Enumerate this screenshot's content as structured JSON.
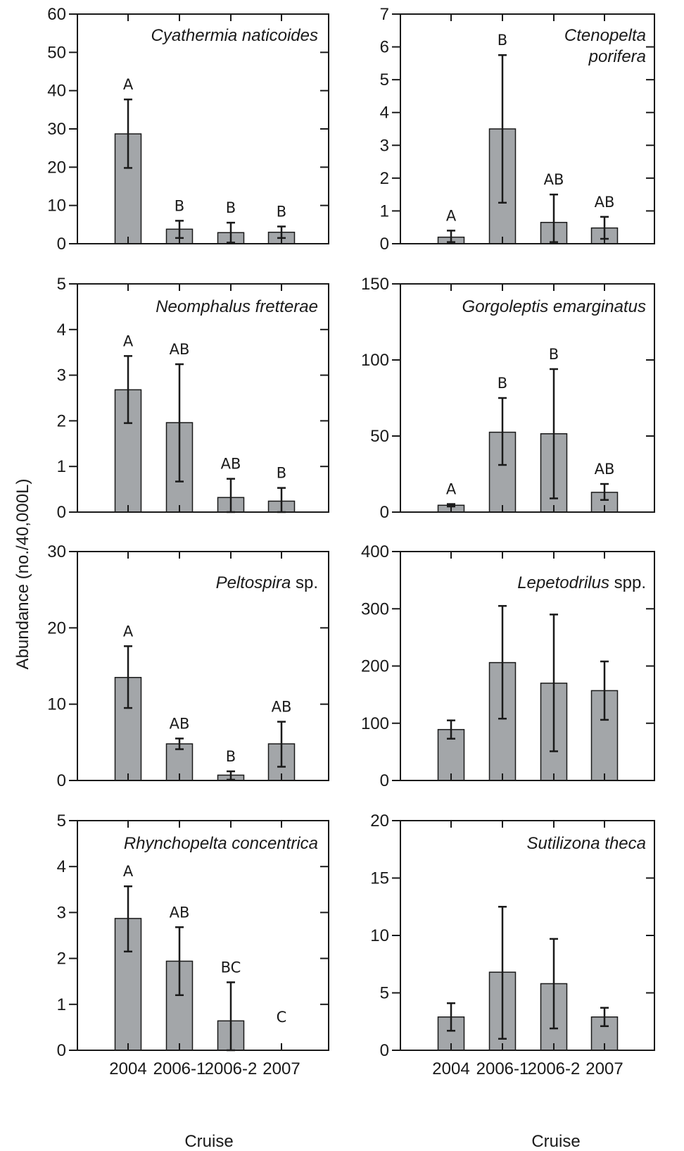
{
  "figure": {
    "ylabel": "Abundance (no./40,000L)",
    "xlabel": "Cruise"
  },
  "chart_data": [
    {
      "type": "bar",
      "title": "Cyathermia naticoides",
      "title_parts": [
        {
          "text": "Cyathermia naticoides",
          "italic": true
        }
      ],
      "categories": [
        "2004",
        "2006-1",
        "2006-2",
        "2007"
      ],
      "values": [
        28.7,
        3.8,
        2.9,
        3.0
      ],
      "error_low": [
        19.8,
        1.5,
        0.3,
        1.5
      ],
      "error_high": [
        37.7,
        6.0,
        5.5,
        4.5
      ],
      "letters": [
        "A",
        "B",
        "B",
        "B"
      ],
      "ylim": [
        0,
        60
      ],
      "yticks": [
        0,
        10,
        20,
        30,
        40,
        50,
        60
      ],
      "show_xticklabels": false
    },
    {
      "type": "bar",
      "title": "Ctenopelta porifera",
      "title_parts": [
        {
          "text": "Ctenopelta",
          "italic": true
        },
        {
          "text": "porifera",
          "italic": true
        }
      ],
      "categories": [
        "2004",
        "2006-1",
        "2006-2",
        "2007"
      ],
      "values": [
        0.2,
        3.5,
        0.65,
        0.48
      ],
      "error_low": [
        0.05,
        1.25,
        0.05,
        0.15
      ],
      "error_high": [
        0.4,
        5.75,
        1.5,
        0.82
      ],
      "letters": [
        "A",
        "B",
        "AB",
        "AB"
      ],
      "ylim": [
        0,
        7
      ],
      "yticks": [
        0,
        1,
        2,
        3,
        4,
        5,
        6,
        7
      ],
      "show_xticklabels": false
    },
    {
      "type": "bar",
      "title": "Neomphalus fretterae",
      "title_parts": [
        {
          "text": "Neomphalus fretterae",
          "italic": true
        }
      ],
      "categories": [
        "2004",
        "2006-1",
        "2006-2",
        "2007"
      ],
      "values": [
        2.68,
        1.96,
        0.32,
        0.24
      ],
      "error_low": [
        1.95,
        0.67,
        0.0,
        0.0
      ],
      "error_high": [
        3.42,
        3.24,
        0.73,
        0.53
      ],
      "letters": [
        "A",
        "AB",
        "AB",
        "B"
      ],
      "ylim": [
        0,
        5
      ],
      "yticks": [
        0,
        1,
        2,
        3,
        4,
        5
      ],
      "show_xticklabels": false
    },
    {
      "type": "bar",
      "title": "Gorgoleptis emarginatus",
      "title_parts": [
        {
          "text": "Gorgoleptis emarginatus",
          "italic": true
        }
      ],
      "categories": [
        "2004",
        "2006-1",
        "2006-2",
        "2007"
      ],
      "values": [
        4.5,
        52.5,
        51.5,
        13.0
      ],
      "error_low": [
        3.7,
        31.0,
        9.0,
        8.0
      ],
      "error_high": [
        5.3,
        75.0,
        94.0,
        18.5
      ],
      "letters": [
        "A",
        "B",
        "B",
        "AB"
      ],
      "ylim": [
        0,
        150
      ],
      "yticks": [
        0,
        50,
        100,
        150
      ],
      "show_xticklabels": false
    },
    {
      "type": "bar",
      "title": "Peltospira sp.",
      "title_parts": [
        {
          "text": "Peltospira",
          "italic": true
        },
        {
          "text": " sp.",
          "italic": false
        }
      ],
      "categories": [
        "2004",
        "2006-1",
        "2006-2",
        "2007"
      ],
      "values": [
        13.5,
        4.8,
        0.7,
        4.8
      ],
      "error_low": [
        9.5,
        4.1,
        0.1,
        1.8
      ],
      "error_high": [
        17.6,
        5.5,
        1.2,
        7.7
      ],
      "letters": [
        "A",
        "AB",
        "B",
        "AB"
      ],
      "ylim": [
        0,
        30
      ],
      "yticks": [
        0,
        10,
        20,
        30
      ],
      "show_xticklabels": false
    },
    {
      "type": "bar",
      "title": "Lepetodrilus spp.",
      "title_parts": [
        {
          "text": "Lepetodrilus",
          "italic": true
        },
        {
          "text": " spp.",
          "italic": false
        }
      ],
      "categories": [
        "2004",
        "2006-1",
        "2006-2",
        "2007"
      ],
      "values": [
        89,
        206,
        170,
        157
      ],
      "error_low": [
        73,
        108,
        51,
        106
      ],
      "error_high": [
        105,
        305,
        290,
        208
      ],
      "letters": [
        "",
        "",
        "",
        ""
      ],
      "ylim": [
        0,
        400
      ],
      "yticks": [
        0,
        100,
        200,
        300,
        400
      ],
      "show_xticklabels": false
    },
    {
      "type": "bar",
      "title": "Rhynchopelta concentrica",
      "title_parts": [
        {
          "text": "Rhynchopelta concentrica",
          "italic": true
        }
      ],
      "categories": [
        "2004",
        "2006-1",
        "2006-2",
        "2007"
      ],
      "values": [
        2.87,
        1.94,
        0.64,
        0
      ],
      "error_low": [
        2.15,
        1.2,
        0.0,
        null
      ],
      "error_high": [
        3.57,
        2.68,
        1.48,
        null
      ],
      "letters": [
        "A",
        "AB",
        "BC",
        "C"
      ],
      "ylim": [
        0,
        5
      ],
      "yticks": [
        0,
        1,
        2,
        3,
        4,
        5
      ],
      "show_xticklabels": true
    },
    {
      "type": "bar",
      "title": "Sutilizona theca",
      "title_parts": [
        {
          "text": "Sutilizona theca",
          "italic": true
        }
      ],
      "categories": [
        "2004",
        "2006-1",
        "2006-2",
        "2007"
      ],
      "values": [
        2.9,
        6.8,
        5.8,
        2.9
      ],
      "error_low": [
        1.7,
        1.0,
        1.9,
        2.1
      ],
      "error_high": [
        4.1,
        12.5,
        9.7,
        3.7
      ],
      "letters": [
        "",
        "",
        "",
        ""
      ],
      "ylim": [
        0,
        20
      ],
      "yticks": [
        0,
        5,
        10,
        15,
        20
      ],
      "show_xticklabels": true
    }
  ]
}
